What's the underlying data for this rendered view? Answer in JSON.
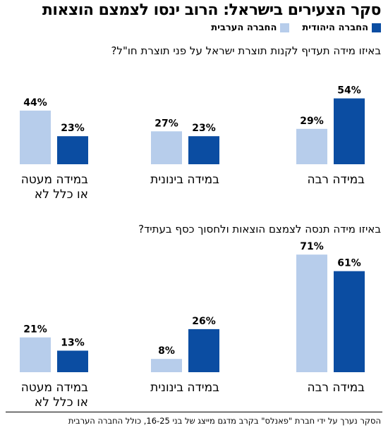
{
  "title": "סקר הצעירים בישראל: הרוב ינסו לצמצם הוצאות",
  "legend": {
    "jewish": "החברה היהודית",
    "arab": "החברה הערבית"
  },
  "colors": {
    "jewish": "#0b4da2",
    "arab": "#b7cdeb"
  },
  "footnote": "הסקר נערך על ידי חברת \"פאנלס\" בקרב מדגם מייצג של בני 16-25, כולל החברה הערבית",
  "chart_data": [
    {
      "type": "bar",
      "title": "באיזו מידה תעדיף לקנות תוצרת ישראל על פני תוצרת חו\"ל?",
      "categories": [
        "במידה רבה",
        "במידה בינונית",
        "במידה מעטה או כלל לא"
      ],
      "category_lines": [
        [
          "במידה רבה"
        ],
        [
          "במידה בינונית"
        ],
        [
          "במידה מעטה",
          "או כלל לא"
        ]
      ],
      "series": [
        {
          "name": "החברה היהודית",
          "values": [
            54,
            23,
            23
          ]
        },
        {
          "name": "החברה הערבית",
          "values": [
            29,
            27,
            44
          ]
        }
      ],
      "value_suffix": "%"
    },
    {
      "type": "bar",
      "title": "באיזו מידה תנסה לצמצם הוצאות ולחסוך כסף בעתיד?",
      "categories": [
        "במידה רבה",
        "במידה בינונית",
        "במידה מעטה או כלל לא"
      ],
      "category_lines": [
        [
          "במידה רבה"
        ],
        [
          "במידה בינונית"
        ],
        [
          "במידה מעטה",
          "או כלל לא"
        ]
      ],
      "series": [
        {
          "name": "החברה היהודית",
          "values": [
            61,
            26,
            13
          ]
        },
        {
          "name": "החברה הערבית",
          "values": [
            71,
            8,
            21
          ]
        }
      ],
      "value_suffix": "%"
    }
  ]
}
